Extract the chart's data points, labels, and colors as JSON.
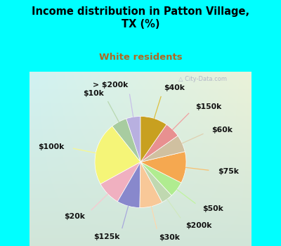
{
  "title": "Income distribution in Patton Village,\nTX (%)",
  "subtitle": "White residents",
  "title_color": "#000000",
  "subtitle_color": "#b06820",
  "bg_color": "#00ffff",
  "labels": [
    "> $200k",
    "$10k",
    "$100k",
    "$20k",
    "$125k",
    "$30k",
    "$200k",
    "$50k",
    "$75k",
    "$60k",
    "$150k",
    "$40k"
  ],
  "values": [
    5.0,
    5.5,
    22.0,
    8.5,
    8.0,
    8.0,
    4.0,
    5.5,
    11.0,
    6.0,
    5.5,
    9.5
  ],
  "colors": [
    "#b8b0e0",
    "#a8cca0",
    "#f5f578",
    "#f0b0c0",
    "#8888cc",
    "#f8c898",
    "#c0d8b0",
    "#b0ec90",
    "#f5a850",
    "#d0c0a0",
    "#e89090",
    "#c8a020"
  ],
  "line_colors": [
    "#c8c0e8",
    "#b8d8b0",
    "#f8f890",
    "#f8c8d0",
    "#a8a8dc",
    "#fcd8b0",
    "#d0e8c0",
    "#c0f4a0",
    "#f8c070",
    "#e0d0b0",
    "#f0a0a0",
    "#dcc040"
  ],
  "startangle": 90,
  "label_fontsize": 7.8,
  "watermark": " City-Data.com"
}
